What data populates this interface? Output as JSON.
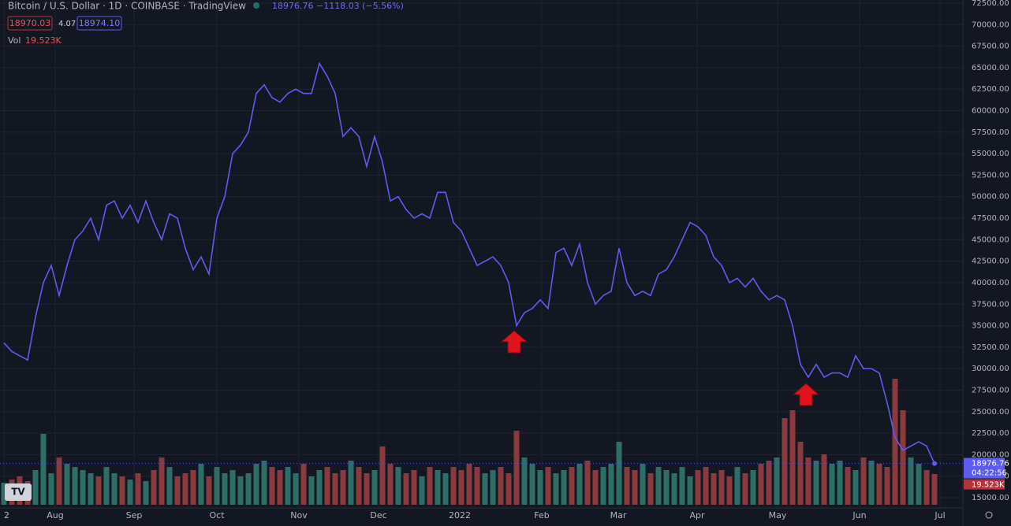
{
  "header": {
    "symbol": "Bitcoin / U.S. Dollar · 1D · COINBASE · TradingView",
    "quote": "18976.76 −1118.03 (−5.56%)",
    "bid": "18970.03",
    "spread": "4.07",
    "ask": "18974.10",
    "vol_label": "Vol",
    "vol_value": "19.523K"
  },
  "right_labels": {
    "price": "18976.76",
    "countdown": "04:22:56",
    "volume": "19.523K"
  },
  "chart_data": {
    "type": "line",
    "color": "#5e5cf0",
    "up_color": "#2d6e66",
    "down_color": "#8a3a3c",
    "ylim": [
      15000,
      72500
    ],
    "yticks": [
      {
        "value": 72500,
        "label": "72500.00"
      },
      {
        "value": 70000,
        "label": "70000.00"
      },
      {
        "value": 67500,
        "label": "67500.00"
      },
      {
        "value": 65000,
        "label": "65000.00"
      },
      {
        "value": 62500,
        "label": "62500.00"
      },
      {
        "value": 60000,
        "label": "60000.00"
      },
      {
        "value": 57500,
        "label": "57500.00"
      },
      {
        "value": 55000,
        "label": "55000.00"
      },
      {
        "value": 52500,
        "label": "52500.00"
      },
      {
        "value": 50000,
        "label": "50000.00"
      },
      {
        "value": 47500,
        "label": "47500.00"
      },
      {
        "value": 45000,
        "label": "45000.00"
      },
      {
        "value": 42500,
        "label": "42500.00"
      },
      {
        "value": 40000,
        "label": "40000.00"
      },
      {
        "value": 37500,
        "label": "37500.00"
      },
      {
        "value": 35000,
        "label": "35000.00"
      },
      {
        "value": 32500,
        "label": "32500.00"
      },
      {
        "value": 30000,
        "label": "30000.00"
      },
      {
        "value": 27500,
        "label": "27500.00"
      },
      {
        "value": 25000,
        "label": "25000.00"
      },
      {
        "value": 22500,
        "label": "22500.00"
      },
      {
        "value": 20000,
        "label": "20000.00"
      },
      {
        "value": 17500,
        "label": "17500.00"
      },
      {
        "value": 15000,
        "label": "15000.00"
      }
    ],
    "xticks": [
      {
        "value": 0,
        "label": "2"
      },
      {
        "value": 6.5,
        "label": "Aug"
      },
      {
        "value": 16.5,
        "label": "Sep"
      },
      {
        "value": 27,
        "label": "Oct"
      },
      {
        "value": 37.4,
        "label": "Nov"
      },
      {
        "value": 47.5,
        "label": "Dec"
      },
      {
        "value": 57.8,
        "label": "2022"
      },
      {
        "value": 68.2,
        "label": "Feb"
      },
      {
        "value": 77.9,
        "label": "Mar"
      },
      {
        "value": 87.9,
        "label": "Apr"
      },
      {
        "value": 98.1,
        "label": "May"
      },
      {
        "value": 108.5,
        "label": "Jun"
      },
      {
        "value": 118.7,
        "label": "Jul"
      }
    ],
    "series": [
      {
        "name": "Price",
        "values": [
          33000,
          32000,
          31500,
          31000,
          36000,
          40000,
          42000,
          38500,
          42000,
          45000,
          46000,
          47500,
          45000,
          49000,
          49500,
          47500,
          49000,
          47000,
          49500,
          47000,
          45000,
          48000,
          47500,
          44000,
          41500,
          43000,
          41000,
          47500,
          50000,
          55000,
          56000,
          57500,
          62000,
          63000,
          61500,
          61000,
          62000,
          62500,
          62000,
          62000,
          65500,
          64000,
          62000,
          57000,
          58000,
          57000,
          53500,
          57000,
          54000,
          49500,
          50000,
          48500,
          47500,
          48000,
          47500,
          50500,
          50500,
          47000,
          46000,
          44000,
          42000,
          42500,
          43000,
          42000,
          40000,
          35000,
          36500,
          37000,
          38000,
          37000,
          43500,
          44000,
          42000,
          44500,
          40000,
          37500,
          38500,
          39000,
          44000,
          40000,
          38500,
          39000,
          38500,
          41000,
          41500,
          43000,
          45000,
          47000,
          46500,
          45500,
          43000,
          42000,
          40000,
          40500,
          39500,
          40500,
          39000,
          38000,
          38500,
          38000,
          35000,
          30500,
          29000,
          30500,
          29000,
          29500,
          29500,
          29000,
          31500,
          30000,
          30000,
          29500,
          26000,
          22000,
          20500,
          21000,
          21500,
          21000,
          18976.76
        ]
      },
      {
        "name": "Vol",
        "values": [
          14,
          16,
          18,
          15,
          22,
          45,
          20,
          30,
          26,
          24,
          22,
          20,
          18,
          24,
          20,
          18,
          16,
          20,
          15,
          22,
          30,
          24,
          18,
          20,
          22,
          26,
          18,
          24,
          20,
          22,
          18,
          20,
          26,
          28,
          24,
          22,
          24,
          20,
          26,
          18,
          22,
          24,
          20,
          22,
          28,
          24,
          20,
          22,
          37,
          26,
          24,
          20,
          22,
          18,
          24,
          22,
          20,
          24,
          22,
          26,
          24,
          20,
          22,
          24,
          20,
          47,
          30,
          26,
          22,
          24,
          20,
          22,
          24,
          26,
          28,
          22,
          24,
          26,
          40,
          24,
          22,
          26,
          20,
          24,
          22,
          20,
          24,
          18,
          22,
          24,
          20,
          22,
          18,
          24,
          20,
          22,
          26,
          28,
          30,
          55,
          60,
          40,
          30,
          28,
          32,
          26,
          28,
          24,
          22,
          30,
          28,
          26,
          24,
          80,
          60,
          30,
          26,
          22,
          19.523
        ]
      }
    ]
  }
}
